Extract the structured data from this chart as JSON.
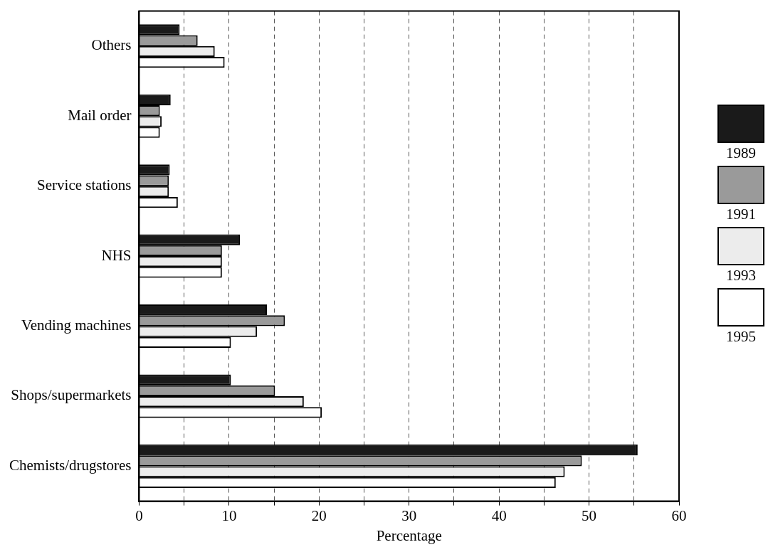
{
  "chart_data": {
    "type": "bar",
    "orientation": "horizontal",
    "xlabel": "Percentage",
    "categories": [
      "Others",
      "Mail order",
      "Service stations",
      "NHS",
      "Vending machines",
      "Shops/supermarkets",
      "Chemists/drugstores"
    ],
    "series": [
      {
        "name": "1989",
        "color": "#1a1a1a",
        "values": [
          4.5,
          3.5,
          3.4,
          11.2,
          14.2,
          10.2,
          55.4
        ]
      },
      {
        "name": "1991",
        "color": "#9a9a9a",
        "values": [
          6.5,
          2.3,
          3.3,
          9.2,
          16.2,
          15.1,
          49.2
        ]
      },
      {
        "name": "1993",
        "color": "#ececec",
        "values": [
          8.4,
          2.5,
          3.3,
          9.2,
          13.1,
          18.3,
          47.3
        ]
      },
      {
        "name": "1995",
        "color": "#ffffff",
        "values": [
          9.5,
          2.3,
          4.3,
          9.2,
          10.2,
          20.3,
          46.3
        ]
      }
    ],
    "xlim": [
      0,
      60
    ],
    "xticks": [
      0,
      {
        "value": 5,
        "label": null
      },
      10,
      {
        "value": 15,
        "label": null
      },
      20,
      {
        "value": 25,
        "label": null
      },
      30,
      {
        "value": 35,
        "label": null
      },
      40,
      {
        "value": 45,
        "label": null
      },
      50,
      {
        "value": 55,
        "label": null
      },
      60
    ],
    "grid": "x",
    "line_style": "dashed",
    "legend": "right"
  }
}
